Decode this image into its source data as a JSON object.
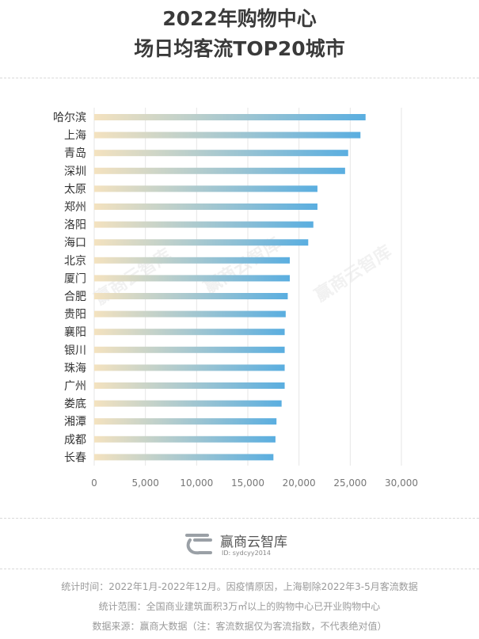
{
  "title": {
    "line1": "2022年购物中心",
    "line2": "场日均客流TOP20城市"
  },
  "chart_data": {
    "type": "bar",
    "orientation": "horizontal",
    "categories": [
      "哈尔滨",
      "上海",
      "青岛",
      "深圳",
      "太原",
      "郑州",
      "洛阳",
      "海口",
      "北京",
      "厦门",
      "合肥",
      "贵阳",
      "襄阳",
      "银川",
      "珠海",
      "广州",
      "娄底",
      "湘潭",
      "成都",
      "长春"
    ],
    "values": [
      26500,
      26000,
      24800,
      24500,
      21800,
      21800,
      21400,
      20900,
      19100,
      19100,
      18900,
      18700,
      18600,
      18600,
      18600,
      18600,
      18300,
      17800,
      17700,
      17500
    ],
    "xlim": [
      0,
      30000
    ],
    "xticks": [
      "0",
      "5,000",
      "10,000",
      "15,000",
      "20,000",
      "25,000",
      "30,000"
    ],
    "xtick_values": [
      0,
      5000,
      10000,
      15000,
      20000,
      25000,
      30000
    ],
    "gradient": {
      "start": "#f4e2bf",
      "end": "#5aaee0"
    },
    "grid": true
  },
  "logo": {
    "name": "赢商云智库",
    "id": "ID: sydcyy2014"
  },
  "watermark": "赢商云智库",
  "footer": {
    "line1": "统计时间：2022年1月-2022年12月。因疫情原因，上海剔除2022年3-5月客流数据",
    "line2": "统计范围：全国商业建筑面积3万㎡以上的购物中心已开业购物中心",
    "line3": "数据来源：赢商大数据（注：客流数据仅为客流指数，不代表绝对值）"
  }
}
